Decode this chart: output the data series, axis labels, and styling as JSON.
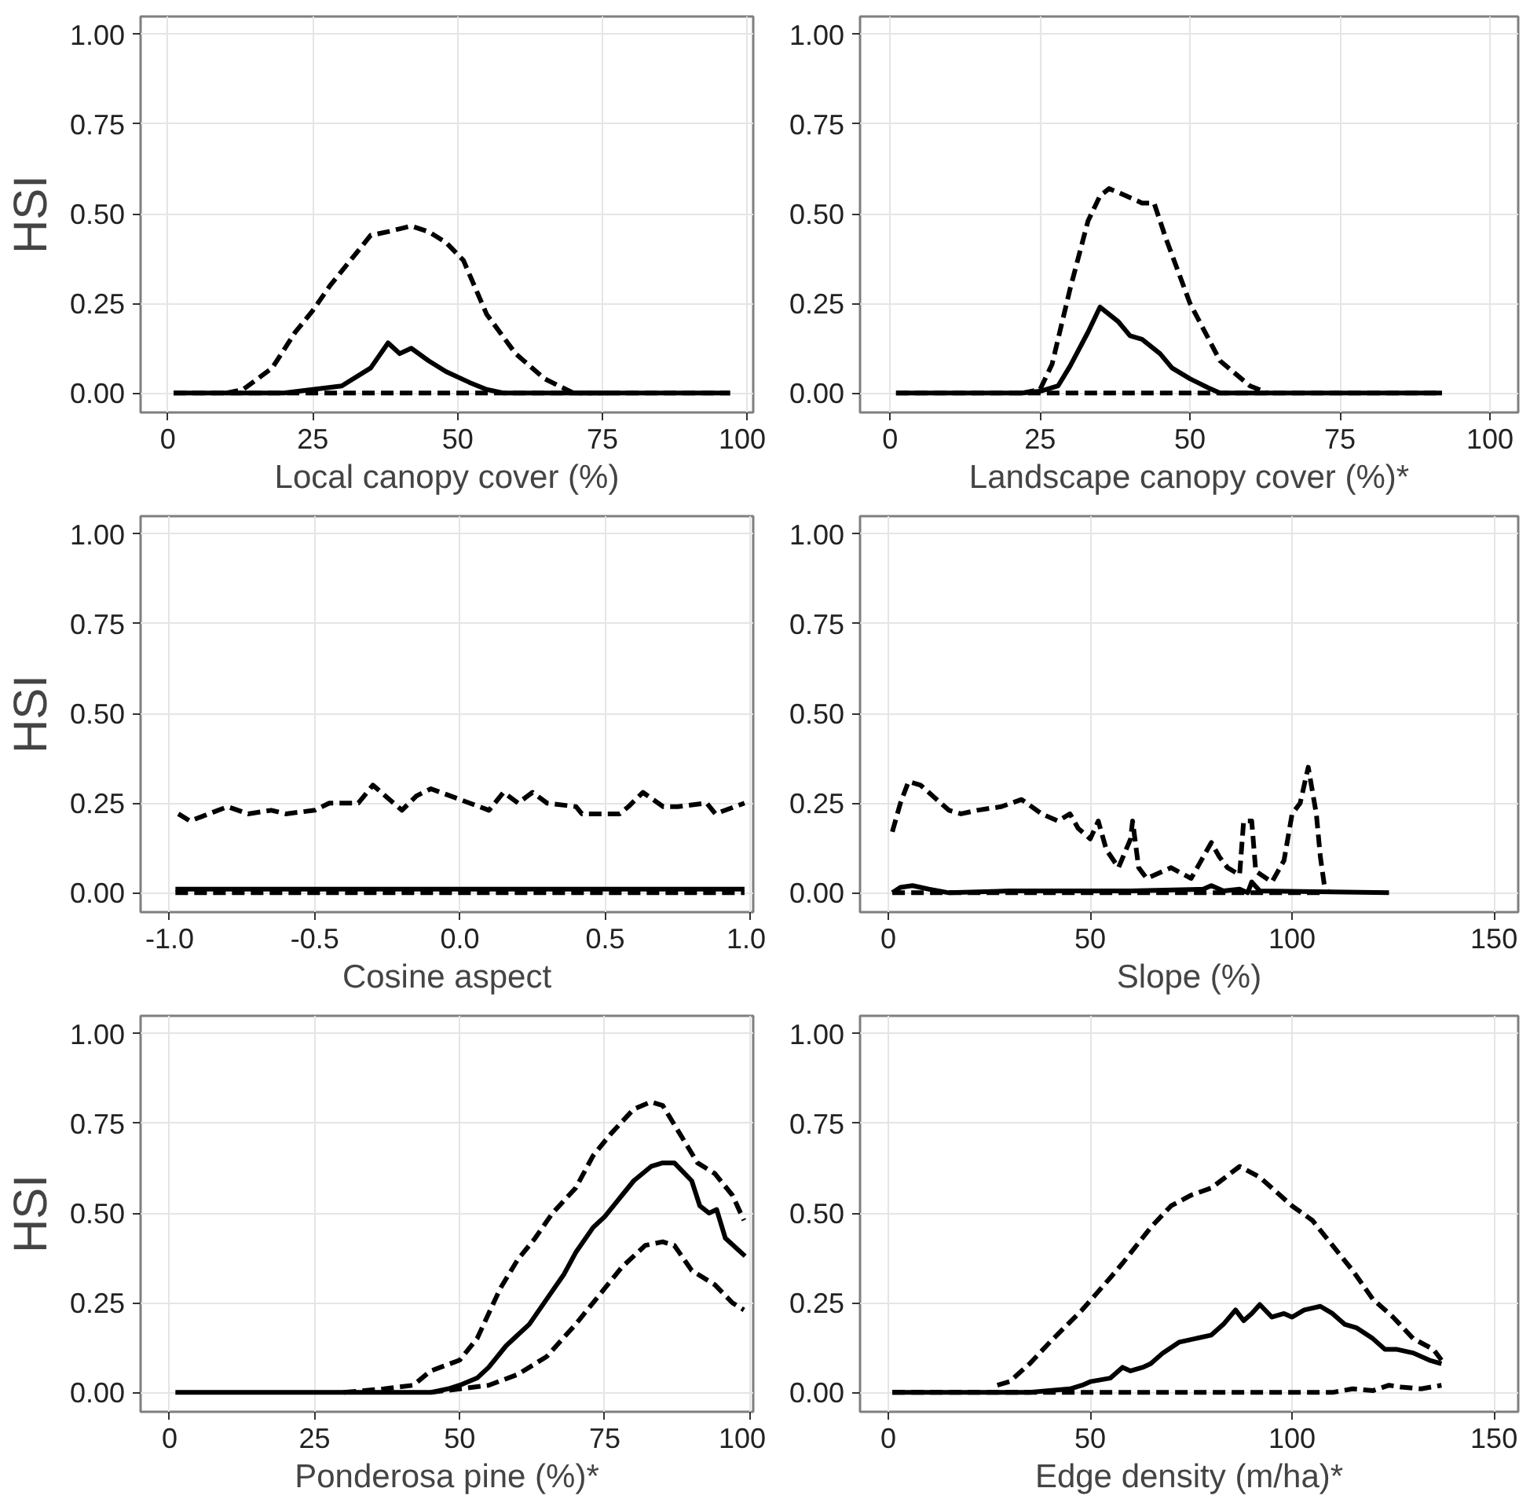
{
  "chart_data": [
    {
      "type": "line",
      "xlabel": "Local canopy cover (%)",
      "ylabel": "HSI",
      "xlim": [
        -4.7,
        101
      ],
      "xticks": [
        0,
        25,
        50,
        75,
        100
      ],
      "ylim": [
        -0.054,
        1.05
      ],
      "yticks": [
        {
          "value": 0,
          "label": "0.00"
        },
        {
          "value": 0.25,
          "label": "0.25"
        },
        {
          "value": 0.5,
          "label": "0.50"
        },
        {
          "value": 0.75,
          "label": "0.75"
        },
        {
          "value": 1,
          "label": "1.00"
        }
      ],
      "grid": true,
      "series": [
        {
          "color": "#000000",
          "line_style": "solid",
          "x": [
            1,
            20,
            25,
            30,
            35,
            38,
            40,
            42,
            45,
            48,
            52,
            55,
            58,
            97
          ],
          "values": [
            0,
            0,
            0.01,
            0.02,
            0.07,
            0.14,
            0.11,
            0.125,
            0.09,
            0.06,
            0.03,
            0.01,
            0,
            0
          ]
        },
        {
          "color": "#000000",
          "line_style": "dashed",
          "x": [
            10,
            13,
            18,
            22,
            25,
            28,
            32,
            35,
            38,
            42,
            45,
            48,
            51,
            55,
            60,
            65,
            70,
            76
          ],
          "values": [
            0,
            0.01,
            0.07,
            0.17,
            0.23,
            0.3,
            0.38,
            0.44,
            0.45,
            0.466,
            0.45,
            0.42,
            0.37,
            0.22,
            0.11,
            0.04,
            0,
            0
          ]
        },
        {
          "color": "#000000",
          "line_style": "dashed",
          "x": [
            1,
            97
          ],
          "values": [
            0,
            0
          ]
        }
      ]
    },
    {
      "type": "line",
      "xlabel": "Landscape canopy cover (%)*",
      "xlim": [
        -5,
        104.7
      ],
      "xticks": [
        0,
        25,
        50,
        75,
        100
      ],
      "ylim": [
        -0.054,
        1.05
      ],
      "yticks": [
        {
          "value": 0,
          "label": "0.00"
        },
        {
          "value": 0.25,
          "label": "0.25"
        },
        {
          "value": 0.5,
          "label": "0.50"
        },
        {
          "value": 0.75,
          "label": "0.75"
        },
        {
          "value": 1,
          "label": "1.00"
        }
      ],
      "grid": true,
      "series": [
        {
          "color": "#000000",
          "line_style": "solid",
          "x": [
            1,
            22,
            25,
            28,
            30,
            33,
            35,
            38,
            40,
            42,
            45,
            47,
            50,
            53,
            55,
            92
          ],
          "values": [
            0,
            0,
            0.005,
            0.02,
            0.075,
            0.17,
            0.24,
            0.2,
            0.16,
            0.15,
            0.11,
            0.07,
            0.04,
            0.015,
            0,
            0
          ]
        },
        {
          "color": "#000000",
          "line_style": "dashed",
          "x": [
            22,
            25,
            27,
            30,
            33,
            35,
            36.5,
            38,
            42,
            44,
            46,
            50,
            55,
            60,
            63
          ],
          "values": [
            0,
            0.01,
            0.08,
            0.29,
            0.48,
            0.55,
            0.57,
            0.56,
            0.53,
            0.53,
            0.43,
            0.25,
            0.09,
            0.02,
            0
          ]
        },
        {
          "color": "#000000",
          "line_style": "dashed",
          "x": [
            1,
            92
          ],
          "values": [
            0,
            0
          ]
        }
      ]
    },
    {
      "type": "line",
      "xlabel": "Cosine aspect",
      "ylabel": "HSI",
      "xlim": [
        -1.1,
        1.01
      ],
      "xticks": [
        {
          "value": -1,
          "label": "-1.0"
        },
        {
          "value": -0.5,
          "label": "-0.5"
        },
        {
          "value": 0,
          "label": "0.0"
        },
        {
          "value": 0.5,
          "label": "0.5"
        },
        {
          "value": 1,
          "label": "1.0"
        }
      ],
      "ylim": [
        -0.054,
        1.05
      ],
      "yticks": [
        {
          "value": 0,
          "label": "0.00"
        },
        {
          "value": 0.25,
          "label": "0.25"
        },
        {
          "value": 0.5,
          "label": "0.50"
        },
        {
          "value": 0.75,
          "label": "0.75"
        },
        {
          "value": 1,
          "label": "1.00"
        }
      ],
      "grid": true,
      "series": [
        {
          "color": "#000000",
          "line_style": "solid",
          "x": [
            -0.98,
            0.98
          ],
          "values": [
            0.01,
            0.01
          ]
        },
        {
          "color": "#000000",
          "line_style": "dashed",
          "x": [
            -0.97,
            -0.93,
            -0.8,
            -0.73,
            -0.65,
            -0.6,
            -0.5,
            -0.45,
            -0.35,
            -0.3,
            -0.2,
            -0.15,
            -0.1,
            0.0,
            0.1,
            0.15,
            0.2,
            0.25,
            0.3,
            0.4,
            0.42,
            0.55,
            0.58,
            0.63,
            0.7,
            0.75,
            0.85,
            0.88,
            0.98
          ],
          "values": [
            0.22,
            0.2,
            0.24,
            0.22,
            0.23,
            0.22,
            0.23,
            0.25,
            0.25,
            0.3,
            0.23,
            0.27,
            0.29,
            0.26,
            0.23,
            0.28,
            0.25,
            0.28,
            0.25,
            0.24,
            0.22,
            0.22,
            0.24,
            0.28,
            0.24,
            0.24,
            0.25,
            0.22,
            0.25
          ]
        },
        {
          "color": "#000000",
          "line_style": "dashed",
          "x": [
            -0.98,
            0.98
          ],
          "values": [
            0,
            0
          ]
        }
      ]
    },
    {
      "type": "line",
      "xlabel": "Slope (%)",
      "xlim": [
        -7,
        156
      ],
      "xticks": [
        0,
        50,
        100,
        150
      ],
      "ylim": [
        -0.054,
        1.05
      ],
      "yticks": [
        {
          "value": 0,
          "label": "0.00"
        },
        {
          "value": 0.25,
          "label": "0.25"
        },
        {
          "value": 0.5,
          "label": "0.50"
        },
        {
          "value": 0.75,
          "label": "0.75"
        },
        {
          "value": 1,
          "label": "1.00"
        }
      ],
      "grid": true,
      "series": [
        {
          "color": "#000000",
          "line_style": "solid",
          "x": [
            1,
            3,
            6,
            10,
            15,
            30,
            60,
            78,
            80,
            83,
            87,
            89,
            90,
            92,
            124
          ],
          "values": [
            0,
            0.015,
            0.02,
            0.01,
            0,
            0.005,
            0.005,
            0.01,
            0.02,
            0.005,
            0.01,
            0,
            0.03,
            0.005,
            0
          ]
        },
        {
          "color": "#000000",
          "line_style": "dashed",
          "x": [
            1,
            3,
            5,
            8,
            10,
            15,
            18,
            22,
            28,
            33,
            38,
            42,
            45,
            47,
            50,
            52,
            54,
            57,
            60,
            60.5,
            62,
            64,
            70,
            75,
            80,
            82,
            84,
            87,
            88,
            90,
            91,
            95,
            98,
            100,
            102,
            104,
            106,
            107,
            108,
            109
          ],
          "values": [
            0.17,
            0.25,
            0.31,
            0.3,
            0.28,
            0.23,
            0.22,
            0.23,
            0.24,
            0.26,
            0.22,
            0.2,
            0.22,
            0.18,
            0.15,
            0.2,
            0.12,
            0.07,
            0.15,
            0.2,
            0.07,
            0.04,
            0.07,
            0.04,
            0.14,
            0.1,
            0.07,
            0.05,
            0.2,
            0.2,
            0.06,
            0.03,
            0.09,
            0.22,
            0.25,
            0.35,
            0.22,
            0.1,
            0.02,
            0
          ]
        },
        {
          "color": "#000000",
          "line_style": "dashed",
          "x": [
            1,
            108
          ],
          "values": [
            0,
            0
          ]
        }
      ]
    },
    {
      "type": "line",
      "xlabel": "Ponderosa pine (%)*",
      "ylabel": "HSI",
      "xlim": [
        -5,
        100.6
      ],
      "xticks": [
        0,
        25,
        50,
        75,
        100
      ],
      "ylim": [
        -0.054,
        1.05
      ],
      "yticks": [
        {
          "value": 0,
          "label": "0.00"
        },
        {
          "value": 0.25,
          "label": "0.25"
        },
        {
          "value": 0.5,
          "label": "0.50"
        },
        {
          "value": 0.75,
          "label": "0.75"
        },
        {
          "value": 1,
          "label": "1.00"
        }
      ],
      "grid": true,
      "series": [
        {
          "color": "#000000",
          "line_style": "solid",
          "x": [
            1,
            45,
            48,
            50,
            53,
            55,
            58,
            60,
            62,
            65,
            68,
            70,
            73,
            75,
            78,
            80,
            83,
            85,
            87,
            90,
            91.4,
            93,
            94.3,
            95.8,
            99.2
          ],
          "values": [
            0,
            0,
            0.01,
            0.02,
            0.04,
            0.07,
            0.13,
            0.16,
            0.19,
            0.26,
            0.33,
            0.39,
            0.46,
            0.49,
            0.55,
            0.59,
            0.63,
            0.64,
            0.64,
            0.59,
            0.52,
            0.5,
            0.51,
            0.43,
            0.38
          ]
        },
        {
          "color": "#000000",
          "line_style": "dashed",
          "x": [
            30,
            37,
            42,
            45,
            50,
            53,
            57,
            60,
            63,
            66,
            70,
            73,
            76,
            80,
            83,
            85,
            88,
            91,
            94,
            97,
            99
          ],
          "values": [
            0,
            0.01,
            0.02,
            0.06,
            0.09,
            0.15,
            0.29,
            0.37,
            0.43,
            0.5,
            0.57,
            0.66,
            0.72,
            0.79,
            0.81,
            0.8,
            0.72,
            0.64,
            0.61,
            0.55,
            0.48
          ]
        },
        {
          "color": "#000000",
          "line_style": "dashed",
          "x": [
            45,
            55,
            60,
            65,
            70,
            75,
            78,
            82,
            85,
            87,
            90,
            94,
            97,
            99
          ],
          "values": [
            0,
            0.02,
            0.05,
            0.1,
            0.19,
            0.29,
            0.35,
            0.41,
            0.42,
            0.41,
            0.34,
            0.3,
            0.25,
            0.23
          ]
        }
      ]
    },
    {
      "type": "line",
      "xlabel": "Edge density (m/ha)*",
      "xlim": [
        -7,
        156
      ],
      "xticks": [
        0,
        50,
        100,
        150
      ],
      "ylim": [
        -0.054,
        1.05
      ],
      "yticks": [
        {
          "value": 0,
          "label": "0.00"
        },
        {
          "value": 0.25,
          "label": "0.25"
        },
        {
          "value": 0.5,
          "label": "0.50"
        },
        {
          "value": 0.75,
          "label": "0.75"
        },
        {
          "value": 1,
          "label": "1.00"
        }
      ],
      "grid": true,
      "series": [
        {
          "color": "#000000",
          "line_style": "solid",
          "x": [
            1,
            35,
            40,
            45,
            48,
            50,
            55,
            58,
            60,
            63,
            65,
            68,
            72,
            76,
            80,
            83,
            86,
            88,
            90,
            92,
            95,
            98,
            100,
            103,
            107,
            110,
            113,
            116,
            120,
            123,
            126,
            130,
            134,
            137
          ],
          "values": [
            0,
            0,
            0.005,
            0.01,
            0.02,
            0.03,
            0.04,
            0.07,
            0.06,
            0.07,
            0.08,
            0.11,
            0.14,
            0.15,
            0.16,
            0.19,
            0.23,
            0.2,
            0.22,
            0.245,
            0.21,
            0.22,
            0.21,
            0.23,
            0.24,
            0.22,
            0.19,
            0.18,
            0.15,
            0.12,
            0.12,
            0.11,
            0.09,
            0.08
          ]
        },
        {
          "color": "#000000",
          "line_style": "dashed",
          "x": [
            27,
            30,
            35,
            40,
            48,
            55,
            58,
            65,
            70,
            75,
            80,
            87,
            92,
            100,
            105,
            110,
            115,
            120,
            125,
            130,
            135,
            137
          ],
          "values": [
            0.02,
            0.03,
            0.08,
            0.14,
            0.23,
            0.32,
            0.36,
            0.46,
            0.52,
            0.55,
            0.57,
            0.63,
            0.6,
            0.52,
            0.48,
            0.41,
            0.34,
            0.26,
            0.21,
            0.15,
            0.12,
            0.09
          ]
        },
        {
          "color": "#000000",
          "line_style": "dashed",
          "x": [
            1,
            110,
            115,
            120,
            124,
            127,
            132,
            137
          ],
          "values": [
            0,
            0,
            0.01,
            0.005,
            0.02,
            0.015,
            0.01,
            0.02
          ]
        }
      ]
    }
  ]
}
